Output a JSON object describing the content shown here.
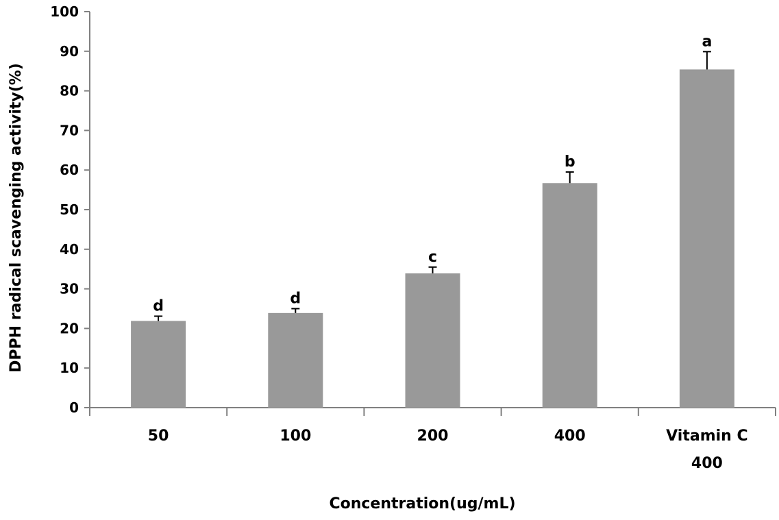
{
  "chart_data": {
    "type": "bar",
    "title": "",
    "xlabel": "Concentration(ug/mL)",
    "ylabel": "DPPH radical scavenging activity(%)",
    "ylim": [
      0,
      100
    ],
    "yticks": [
      0,
      10,
      20,
      30,
      40,
      50,
      60,
      70,
      80,
      90,
      100
    ],
    "categories": [
      [
        "50"
      ],
      [
        "100"
      ],
      [
        "200"
      ],
      [
        "400"
      ],
      [
        "Vitamin C",
        "400"
      ]
    ],
    "values": [
      21.9,
      23.9,
      33.9,
      56.7,
      85.4
    ],
    "errors": [
      1.2,
      1.1,
      1.6,
      2.8,
      4.5
    ],
    "significance_labels": [
      "d",
      "d",
      "c",
      "b",
      "a"
    ],
    "bar_color": "#999999",
    "grid": false,
    "legend": "none"
  }
}
